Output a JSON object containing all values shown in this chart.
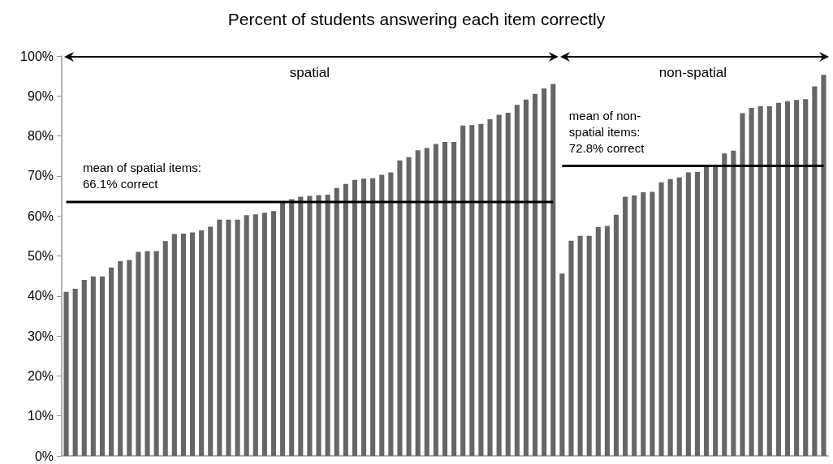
{
  "chart_data": {
    "type": "bar",
    "title": "Percent of students answering each item correctly",
    "categories": [
      null,
      null,
      null,
      null,
      null,
      null,
      null,
      null,
      null,
      null,
      null,
      null,
      null,
      null,
      null,
      null,
      null,
      null,
      null,
      null,
      null,
      null,
      null,
      null,
      null,
      null,
      null,
      null,
      null,
      null,
      null,
      null,
      null,
      null,
      null,
      null,
      null,
      null,
      null,
      null,
      null,
      null,
      null,
      null,
      null,
      null,
      null,
      null,
      null,
      null,
      null,
      null,
      null,
      null,
      null,
      null,
      null,
      null,
      null,
      null,
      null,
      null,
      null,
      null,
      null,
      null,
      null,
      null,
      null,
      null,
      null,
      null,
      null,
      null,
      null,
      null,
      null,
      null,
      null,
      null,
      null,
      null,
      null,
      null,
      null
    ],
    "series": [
      {
        "color": "#666666",
        "values": [
          41.0,
          41.8,
          44.0,
          44.9,
          44.9,
          47.1,
          48.7,
          49.0,
          51.0,
          51.2,
          51.2,
          53.7,
          55.5,
          55.6,
          55.9,
          56.4,
          57.3,
          59.1,
          59.1,
          59.1,
          60.2,
          60.4,
          60.8,
          61.2,
          63.4,
          64.2,
          64.8,
          65.0,
          65.2,
          65.3,
          67.0,
          68.0,
          69.0,
          69.3,
          69.4,
          70.3,
          70.9,
          73.9,
          74.7,
          76.4,
          77.0,
          78.0,
          78.5,
          78.5,
          82.6,
          82.7,
          83.0,
          84.2,
          85.3,
          85.8,
          87.8,
          89.1,
          90.5,
          91.9,
          93.0,
          45.6,
          53.8,
          55.0,
          55.0,
          57.2,
          57.5,
          60.3,
          64.8,
          65.1,
          65.9,
          66.0,
          68.4,
          69.2,
          69.6,
          70.9,
          71.0,
          72.5,
          72.5,
          75.6,
          76.3,
          85.7,
          87.0,
          87.4,
          87.4,
          88.3,
          88.7,
          89.0,
          89.2,
          92.4,
          95.3
        ]
      },
      {
        "type": "line",
        "color": "#000000",
        "values": [
          63.5,
          63.5,
          63.5,
          63.5,
          63.5,
          63.5,
          63.5,
          63.5,
          63.5,
          63.5,
          63.5,
          63.5,
          63.5,
          63.5,
          63.5,
          63.5,
          63.5,
          63.5,
          63.5,
          63.5,
          63.5,
          63.5,
          63.5,
          63.5,
          63.5,
          63.5,
          63.5,
          63.5,
          63.5,
          63.5,
          63.5,
          63.5,
          63.5,
          63.5,
          63.5,
          63.5,
          63.5,
          63.5,
          63.5,
          63.5,
          63.5,
          63.5,
          63.5,
          63.5,
          63.5,
          63.5,
          63.5,
          63.5,
          63.5,
          63.5,
          63.5,
          63.5,
          63.5,
          63.5,
          63.5,
          null,
          null,
          null,
          null,
          null,
          null,
          null,
          null,
          null,
          null,
          null,
          null,
          null,
          null,
          null,
          null,
          null,
          null,
          null,
          null,
          null,
          null,
          null,
          null,
          null,
          null,
          null,
          null,
          null,
          null
        ]
      },
      {
        "type": "line",
        "color": "#000000",
        "values": [
          null,
          null,
          null,
          null,
          null,
          null,
          null,
          null,
          null,
          null,
          null,
          null,
          null,
          null,
          null,
          null,
          null,
          null,
          null,
          null,
          null,
          null,
          null,
          null,
          null,
          null,
          null,
          null,
          null,
          null,
          null,
          null,
          null,
          null,
          null,
          null,
          null,
          null,
          null,
          null,
          null,
          null,
          null,
          null,
          null,
          null,
          null,
          null,
          null,
          null,
          null,
          null,
          null,
          null,
          null,
          72.5,
          72.5,
          72.5,
          72.5,
          72.5,
          72.5,
          72.5,
          72.5,
          72.5,
          72.5,
          72.5,
          72.5,
          72.5,
          72.5,
          72.5,
          72.5,
          72.5,
          72.5,
          72.5,
          72.5,
          72.5,
          72.5,
          72.5,
          72.5,
          72.5,
          72.5,
          72.5,
          72.5,
          72.5,
          72.5
        ]
      }
    ],
    "annotations": [
      "spatial",
      "non-spatial",
      "mean of spatial items:\n66.1% correct",
      "mean of non-\nspatial items:\n72.8% correct"
    ],
    "ylim": [
      0,
      100
    ],
    "yticks": [
      {
        "value": 0,
        "label": "0%"
      },
      {
        "value": 10,
        "label": "10%"
      },
      {
        "value": 20,
        "label": "20%"
      },
      {
        "value": 30,
        "label": "30%"
      },
      {
        "value": 40,
        "label": "40%"
      },
      {
        "value": 50,
        "label": "50%"
      },
      {
        "value": 60,
        "label": "60%"
      },
      {
        "value": 70,
        "label": "70%"
      },
      {
        "value": 80,
        "label": "80%"
      },
      {
        "value": 90,
        "label": "90%"
      },
      {
        "value": 100,
        "label": "100%"
      }
    ],
    "grid": false,
    "marker": "none"
  }
}
